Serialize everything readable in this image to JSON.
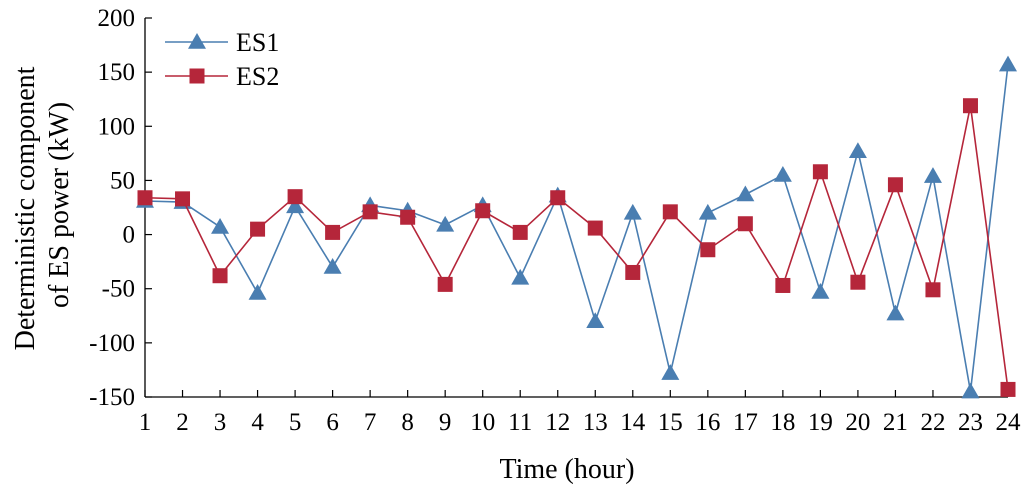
{
  "chart_data": {
    "type": "line",
    "title": "",
    "xlabel": "Time (hour)",
    "ylabel_lines": [
      "Deterministic component",
      "of ES power (kW)"
    ],
    "x": [
      1,
      2,
      3,
      4,
      5,
      6,
      7,
      8,
      9,
      10,
      11,
      12,
      13,
      14,
      15,
      16,
      17,
      18,
      19,
      20,
      21,
      22,
      23,
      24
    ],
    "xlim": [
      1,
      24
    ],
    "ylim": [
      -150,
      200
    ],
    "yticks": [
      -150,
      -100,
      -50,
      0,
      50,
      100,
      150,
      200
    ],
    "grid": false,
    "legend_position": "top-left",
    "series": [
      {
        "name": "ES1",
        "color": "#4a7eb1",
        "marker": "triangle",
        "values": [
          31,
          30,
          7,
          -54,
          26,
          -30,
          27,
          22,
          9,
          27,
          -40,
          36,
          -80,
          20,
          -128,
          20,
          37,
          55,
          -53,
          77,
          -73,
          54,
          -145,
          157
        ]
      },
      {
        "name": "ES2",
        "color": "#b5263a",
        "marker": "square",
        "values": [
          34,
          33,
          -38,
          5,
          35,
          2,
          21,
          16,
          -46,
          22,
          2,
          34,
          6,
          -35,
          21,
          -14,
          10,
          -47,
          58,
          -44,
          46,
          -51,
          119,
          -143
        ]
      }
    ]
  }
}
